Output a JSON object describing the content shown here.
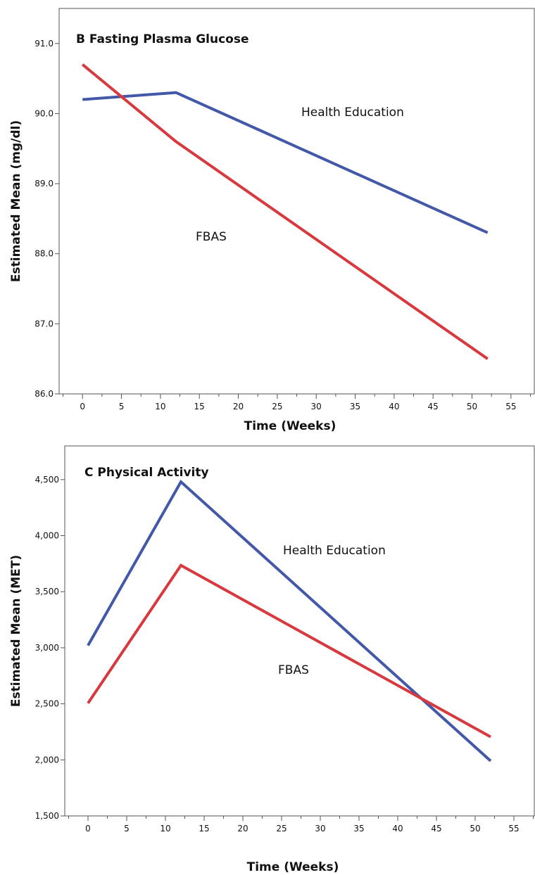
{
  "chart_data": [
    {
      "type": "line",
      "title": "B Fasting Plasma Glucose",
      "xlabel": "Time (Weeks)",
      "ylabel": "Estimated Mean (mg/dl)",
      "xlim": [
        -3,
        57
      ],
      "ylim": [
        86.0,
        91.5
      ],
      "x_ticks": [
        0,
        5,
        10,
        15,
        20,
        25,
        30,
        35,
        40,
        45,
        50,
        55
      ],
      "y_ticks": [
        86.0,
        87.0,
        88.0,
        89.0,
        90.0,
        91.0
      ],
      "y_tick_labels": [
        "86.0",
        "87.0",
        "88.0",
        "89.0",
        "90.0",
        "91.0"
      ],
      "grid": false,
      "series": [
        {
          "name": "Health Education",
          "color": "#4358a8",
          "x": [
            0,
            12,
            52
          ],
          "y": [
            90.2,
            90.3,
            88.3
          ]
        },
        {
          "name": "FBAS",
          "color": "#d8393f",
          "x": [
            0,
            12,
            52
          ],
          "y": [
            90.7,
            89.6,
            86.5
          ]
        }
      ]
    },
    {
      "type": "line",
      "title": "C  Physical Activity",
      "xlabel": "Time (Weeks)",
      "ylabel": "Estimated Mean (MET)",
      "xlim": [
        -3,
        57
      ],
      "ylim": [
        1500,
        4800
      ],
      "x_ticks": [
        0,
        5,
        10,
        15,
        20,
        25,
        30,
        35,
        40,
        45,
        50,
        55
      ],
      "y_ticks": [
        1500,
        2000,
        2500,
        3000,
        3500,
        4000,
        4500
      ],
      "y_tick_labels": [
        "1,500",
        "2,000",
        "2,500",
        "3,000",
        "3,500",
        "4,000",
        "4,500"
      ],
      "grid": false,
      "series": [
        {
          "name": "Health Education",
          "color": "#4358a8",
          "x": [
            0,
            12,
            52
          ],
          "y": [
            3020,
            4480,
            1990
          ]
        },
        {
          "name": "FBAS",
          "color": "#d8393f",
          "x": [
            0,
            12,
            52
          ],
          "y": [
            2505,
            3735,
            2205
          ]
        }
      ]
    }
  ]
}
